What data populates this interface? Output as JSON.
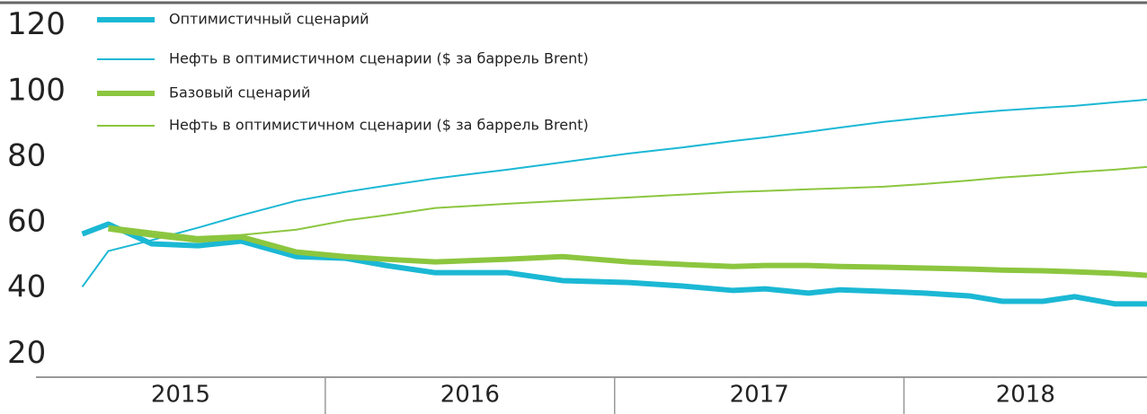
{
  "chart_data": {
    "type": "line",
    "x": [
      2015.16,
      2015.25,
      2015.4,
      2015.56,
      2015.71,
      2015.9,
      2016.07,
      2016.21,
      2016.38,
      2016.63,
      2016.82,
      2017.05,
      2017.24,
      2017.41,
      2017.52,
      2017.67,
      2017.78,
      2017.93,
      2018.07,
      2018.23,
      2018.34,
      2018.48,
      2018.59,
      2018.73,
      2018.84
    ],
    "series": [
      {
        "name": "Оптимистичный сценарий",
        "color": "#1bb8d4",
        "width": 6,
        "values": [
          56.6,
          59.6,
          53.6,
          53.0,
          54.4,
          49.7,
          49.2,
          47.0,
          44.8,
          44.8,
          42.4,
          41.8,
          40.7,
          39.4,
          39.9,
          38.6,
          39.6,
          39.1,
          38.6,
          37.7,
          36.1,
          36.1,
          37.5,
          35.3,
          35.3
        ]
      },
      {
        "name": "Нефть в оптимистичном сценарии ($ за баррель Brent)",
        "color": "#1bb8d4",
        "width": 2,
        "values": [
          40.5,
          51.4,
          54.7,
          58.5,
          62.3,
          66.7,
          69.4,
          71.3,
          73.5,
          76.2,
          78.4,
          81.1,
          83.0,
          84.9,
          86.0,
          87.7,
          89.0,
          90.7,
          92.0,
          93.4,
          94.2,
          95.0,
          95.6,
          96.7,
          97.5
        ]
      },
      {
        "name": "Базовый сценарий",
        "color": "#8cc63f",
        "width": 6,
        "values": [
          null,
          58.2,
          56.3,
          54.7,
          55.7,
          51.1,
          49.7,
          48.9,
          48.1,
          48.9,
          49.7,
          48.1,
          47.3,
          46.7,
          47.0,
          47.0,
          46.7,
          46.5,
          46.2,
          45.9,
          45.6,
          45.4,
          45.1,
          44.6,
          44.0
        ]
      },
      {
        "name": "Нефть в оптимистичном сценарии ($ за баррель Brent)",
        "color": "#8cc63f",
        "width": 2,
        "values": [
          null,
          59.0,
          57.4,
          55.7,
          56.3,
          57.9,
          60.7,
          62.3,
          64.5,
          65.8,
          66.7,
          67.7,
          68.6,
          69.4,
          69.7,
          70.2,
          70.5,
          71.0,
          71.8,
          72.9,
          73.8,
          74.6,
          75.4,
          76.2,
          77.0
        ]
      }
    ],
    "xlim": [
      2015,
      2018.84
    ],
    "xticks": [
      2015,
      2016,
      2017,
      2018
    ],
    "ylim": [
      13,
      127
    ],
    "yticks": [
      20,
      40,
      60,
      80,
      100,
      120
    ]
  }
}
